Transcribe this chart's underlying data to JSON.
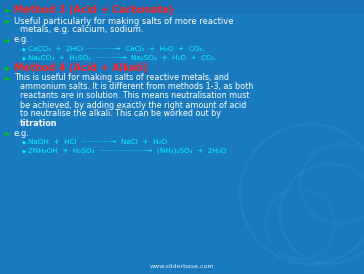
{
  "bg_color": "#1a7abf",
  "text_color_white": "#ffffff",
  "text_color_red": "#ff2222",
  "text_color_cyan": "#00ffff",
  "bullet_color": "#00cc00",
  "watermark": "www.sliderbase.com",
  "title1": "Method 3 (Acid + Carbonate)",
  "title2": "Method 4 (Acid + Alkali)",
  "line1": "Useful particularly for making salts of more reactive",
  "line1b": "metals, e.g. calcium, sodium.",
  "line2": "e.g.",
  "eq1a": "CaCO₃  +  2HCl  ············→  CaCl₂  +  H₂O  +  CO₂.",
  "eq1b": "Na₂CO₃  +  H₂SO₄  ···········→  Na₂SO₄  +  H₂O  +  CO₂.",
  "line3": "This is useful for making salts of reactive metals, and",
  "line3b": "ammonium salts. It is different from methods 1-3, as both",
  "line3c": "reactants are in solution. This means neutralisation must",
  "line3d": "be achieved, by adding exactly the right amount of acid",
  "line3e": "to neutralise the alkali. This can be worked out by",
  "titration": "titration",
  "line4": "e.g.",
  "eq2a": "NaOH  +  HCl  ·············→  NaCl  +  H₂O",
  "eq2b": "2NH₄OH  +  H₂SO₄  ·····················→  (NH₄)₂SO₄  +  2H₂O"
}
